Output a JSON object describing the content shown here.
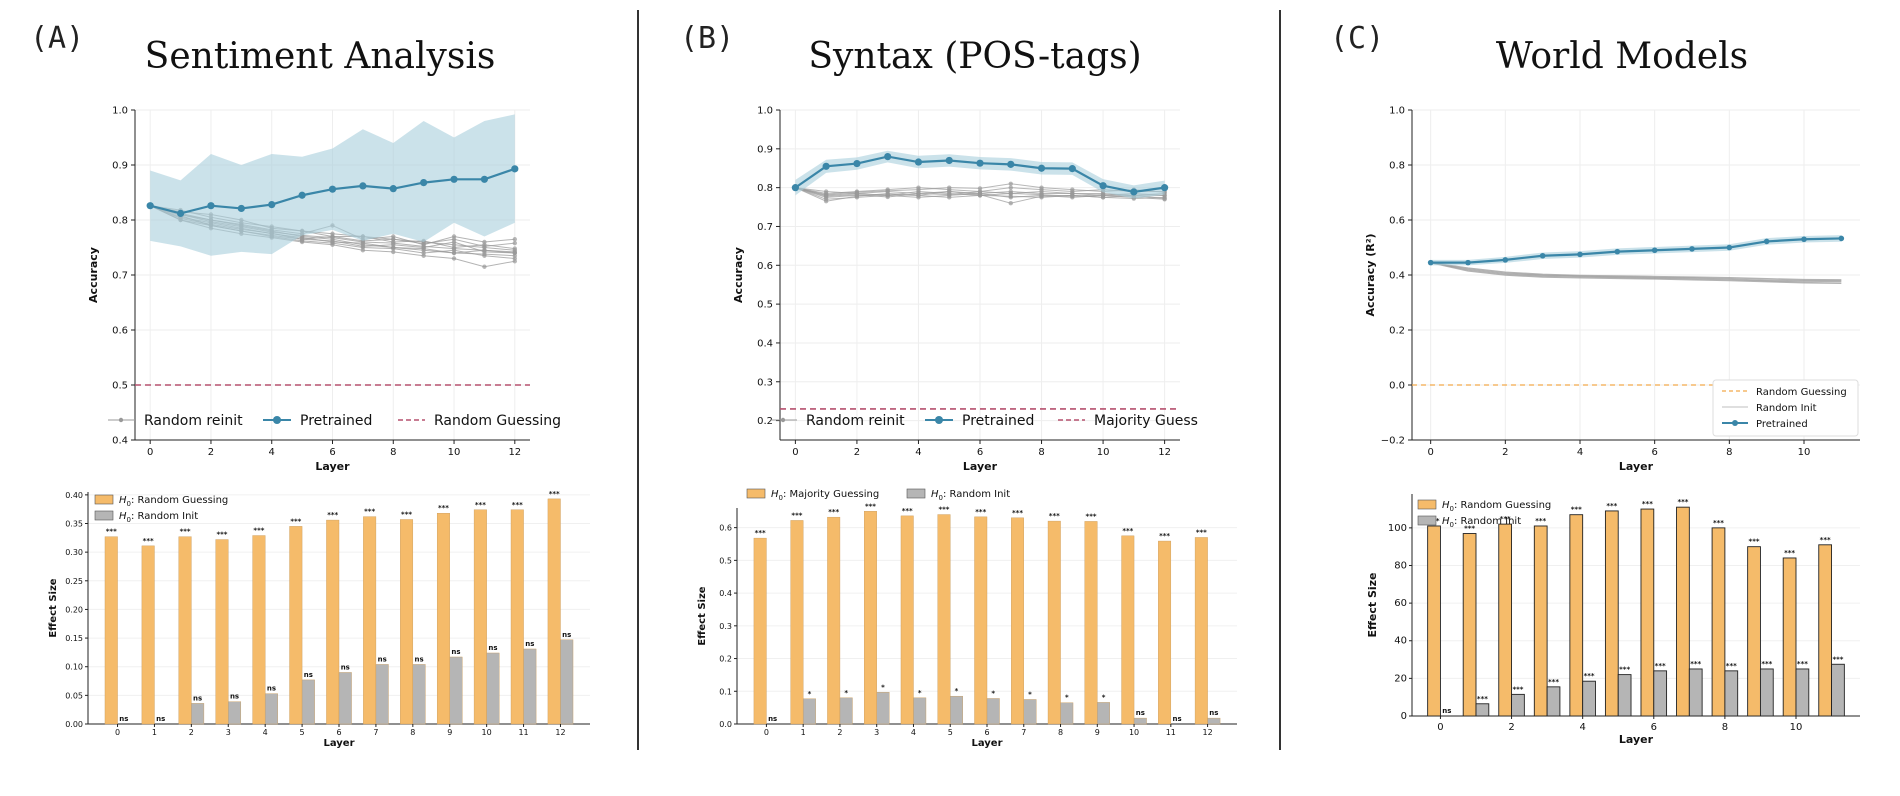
{
  "colors": {
    "pretrained": "#3a86a8",
    "band": "#a8cfdc",
    "random": "#999999",
    "guess_red": "#b5506e",
    "guess_orange": "#f2a94a",
    "bar_orange": "#f5bb6a",
    "bar_gray": "#b5b5b5"
  },
  "panels": [
    {
      "letter": "(A)",
      "title": "Sentiment Analysis"
    },
    {
      "letter": "(B)",
      "title": "Syntax (POS-tags)"
    },
    {
      "letter": "(C)",
      "title": "World Models"
    }
  ],
  "chart_data": [
    {
      "id": "A_line",
      "type": "line",
      "xlabel": "Layer",
      "ylabel": "Accuracy",
      "xlim": [
        -0.5,
        12.5
      ],
      "ylim": [
        0.4,
        1.0
      ],
      "xticks": [
        0,
        2,
        4,
        6,
        8,
        10,
        12
      ],
      "yticks": [
        0.4,
        0.5,
        0.6,
        0.7,
        0.8,
        0.9,
        1.0
      ],
      "ytick_labels": [
        "0.4",
        "0.5",
        "0.6",
        "0.7",
        "0.8",
        "0.9",
        "1.0"
      ],
      "x": [
        0,
        1,
        2,
        3,
        4,
        5,
        6,
        7,
        8,
        9,
        10,
        11,
        12
      ],
      "pretrained": [
        0.826,
        0.812,
        0.826,
        0.821,
        0.828,
        0.845,
        0.856,
        0.862,
        0.857,
        0.868,
        0.874,
        0.874,
        0.893
      ],
      "band_upper": [
        0.89,
        0.872,
        0.92,
        0.9,
        0.92,
        0.915,
        0.93,
        0.965,
        0.94,
        0.98,
        0.95,
        0.98,
        0.992
      ],
      "band_lower": [
        0.762,
        0.752,
        0.735,
        0.742,
        0.738,
        0.772,
        0.782,
        0.762,
        0.775,
        0.76,
        0.795,
        0.77,
        0.795
      ],
      "random_runs": [
        [
          0.826,
          0.81,
          0.8,
          0.79,
          0.78,
          0.77,
          0.765,
          0.755,
          0.75,
          0.745,
          0.74,
          0.745,
          0.74
        ],
        [
          0.826,
          0.8,
          0.79,
          0.78,
          0.77,
          0.762,
          0.758,
          0.75,
          0.748,
          0.74,
          0.745,
          0.735,
          0.73
        ],
        [
          0.826,
          0.815,
          0.81,
          0.8,
          0.785,
          0.78,
          0.775,
          0.77,
          0.765,
          0.76,
          0.755,
          0.75,
          0.745
        ],
        [
          0.826,
          0.805,
          0.795,
          0.785,
          0.775,
          0.768,
          0.76,
          0.758,
          0.75,
          0.748,
          0.74,
          0.738,
          0.735
        ],
        [
          0.826,
          0.812,
          0.8,
          0.792,
          0.782,
          0.775,
          0.79,
          0.765,
          0.77,
          0.755,
          0.77,
          0.76,
          0.765
        ],
        [
          0.826,
          0.8,
          0.785,
          0.775,
          0.768,
          0.76,
          0.755,
          0.745,
          0.742,
          0.735,
          0.73,
          0.715,
          0.725
        ],
        [
          0.826,
          0.818,
          0.805,
          0.795,
          0.788,
          0.78,
          0.77,
          0.77,
          0.76,
          0.762,
          0.75,
          0.755,
          0.748
        ],
        [
          0.826,
          0.808,
          0.79,
          0.78,
          0.772,
          0.765,
          0.762,
          0.752,
          0.755,
          0.75,
          0.76,
          0.742,
          0.74
        ],
        [
          0.826,
          0.81,
          0.797,
          0.788,
          0.778,
          0.772,
          0.768,
          0.76,
          0.758,
          0.752,
          0.748,
          0.745,
          0.742
        ],
        [
          0.826,
          0.803,
          0.792,
          0.783,
          0.776,
          0.765,
          0.77,
          0.762,
          0.765,
          0.757,
          0.765,
          0.752,
          0.758
        ]
      ],
      "guess_value": 0.5,
      "legend": [
        "Random reinit",
        "Pretrained",
        "Random Guessing"
      ]
    },
    {
      "id": "A_bar",
      "type": "bar",
      "xlabel": "Layer",
      "ylabel": "Effect Size",
      "ylim": [
        0,
        0.405
      ],
      "yticks": [
        0,
        0.05,
        0.1,
        0.15,
        0.2,
        0.25,
        0.3,
        0.35,
        0.4
      ],
      "ytick_labels": [
        "0.00",
        "0.05",
        "0.10",
        "0.15",
        "0.20",
        "0.25",
        "0.30",
        "0.35",
        "0.40"
      ],
      "categories": [
        "0",
        "1",
        "2",
        "3",
        "4",
        "5",
        "6",
        "7",
        "8",
        "9",
        "10",
        "11",
        "12"
      ],
      "series": [
        {
          "name": "H0: Random Guessing",
          "values": [
            0.327,
            0.311,
            0.327,
            0.322,
            0.329,
            0.345,
            0.356,
            0.362,
            0.357,
            0.368,
            0.374,
            0.374,
            0.393
          ],
          "sig": [
            "***",
            "***",
            "***",
            "***",
            "***",
            "***",
            "***",
            "***",
            "***",
            "***",
            "***",
            "***",
            "***"
          ]
        },
        {
          "name": "H0: Random Init",
          "values": [
            0.0,
            0.0,
            0.036,
            0.039,
            0.053,
            0.077,
            0.09,
            0.104,
            0.104,
            0.117,
            0.124,
            0.131,
            0.147
          ],
          "sig": [
            "ns",
            "ns",
            "ns",
            "ns",
            "ns",
            "ns",
            "ns",
            "ns",
            "ns",
            "ns",
            "ns",
            "ns",
            "ns"
          ]
        }
      ],
      "legend_labels": [
        ": Random Guessing",
        ": Random Init"
      ]
    },
    {
      "id": "B_line",
      "type": "line",
      "xlabel": "Layer",
      "ylabel": "Accuracy",
      "xlim": [
        -0.5,
        12.5
      ],
      "ylim": [
        0.15,
        1.0
      ],
      "xticks": [
        0,
        2,
        4,
        6,
        8,
        10,
        12
      ],
      "yticks": [
        0.2,
        0.3,
        0.4,
        0.5,
        0.6,
        0.7,
        0.8,
        0.9,
        1.0
      ],
      "ytick_labels": [
        "0.2",
        "0.3",
        "0.4",
        "0.5",
        "0.6",
        "0.7",
        "0.8",
        "0.9",
        "1.0"
      ],
      "x": [
        0,
        1,
        2,
        3,
        4,
        5,
        6,
        7,
        8,
        9,
        10,
        11,
        12
      ],
      "pretrained": [
        0.8,
        0.855,
        0.862,
        0.88,
        0.866,
        0.87,
        0.863,
        0.86,
        0.85,
        0.849,
        0.805,
        0.789,
        0.8
      ],
      "band_upper": [
        0.82,
        0.872,
        0.878,
        0.895,
        0.882,
        0.886,
        0.879,
        0.876,
        0.866,
        0.865,
        0.822,
        0.806,
        0.818
      ],
      "band_lower": [
        0.78,
        0.838,
        0.846,
        0.865,
        0.85,
        0.854,
        0.847,
        0.844,
        0.834,
        0.833,
        0.788,
        0.772,
        0.782
      ],
      "random_runs": [
        [
          0.8,
          0.78,
          0.785,
          0.79,
          0.785,
          0.79,
          0.785,
          0.79,
          0.785,
          0.785,
          0.78,
          0.785,
          0.78
        ],
        [
          0.8,
          0.775,
          0.78,
          0.782,
          0.78,
          0.775,
          0.78,
          0.778,
          0.775,
          0.78,
          0.775,
          0.772,
          0.775
        ],
        [
          0.8,
          0.785,
          0.79,
          0.795,
          0.8,
          0.795,
          0.79,
          0.8,
          0.795,
          0.79,
          0.795,
          0.79,
          0.79
        ],
        [
          0.8,
          0.77,
          0.775,
          0.78,
          0.775,
          0.78,
          0.785,
          0.775,
          0.78,
          0.775,
          0.78,
          0.775,
          0.77
        ],
        [
          0.8,
          0.79,
          0.785,
          0.78,
          0.79,
          0.785,
          0.78,
          0.785,
          0.79,
          0.785,
          0.785,
          0.78,
          0.785
        ],
        [
          0.8,
          0.765,
          0.778,
          0.785,
          0.78,
          0.79,
          0.782,
          0.76,
          0.778,
          0.78,
          0.775,
          0.78,
          0.772
        ],
        [
          0.8,
          0.782,
          0.788,
          0.792,
          0.795,
          0.8,
          0.798,
          0.81,
          0.8,
          0.795,
          0.79,
          0.795,
          0.788
        ],
        [
          0.8,
          0.778,
          0.782,
          0.776,
          0.785,
          0.782,
          0.79,
          0.785,
          0.782,
          0.778,
          0.782,
          0.778,
          0.78
        ]
      ],
      "guess_value": 0.23,
      "legend": [
        "Random reinit",
        "Pretrained",
        "Majority Guess"
      ]
    },
    {
      "id": "B_bar",
      "type": "bar",
      "xlabel": "Layer",
      "ylabel": "Effect Size",
      "ylim": [
        0,
        0.66
      ],
      "yticks": [
        0,
        0.1,
        0.2,
        0.3,
        0.4,
        0.5,
        0.6
      ],
      "ytick_labels": [
        "0.0",
        "0.1",
        "0.2",
        "0.3",
        "0.4",
        "0.5",
        "0.6"
      ],
      "categories": [
        "0",
        "1",
        "2",
        "3",
        "4",
        "5",
        "6",
        "7",
        "8",
        "9",
        "10",
        "11",
        "12"
      ],
      "series": [
        {
          "name": "H0: Majority Guessing",
          "values": [
            0.568,
            0.622,
            0.632,
            0.65,
            0.636,
            0.64,
            0.633,
            0.63,
            0.62,
            0.619,
            0.575,
            0.559,
            0.57
          ],
          "sig": [
            "***",
            "***",
            "***",
            "***",
            "***",
            "***",
            "***",
            "***",
            "***",
            "***",
            "***",
            "***",
            "***"
          ]
        },
        {
          "name": "H0: Random Init",
          "values": [
            0.0,
            0.077,
            0.08,
            0.097,
            0.08,
            0.085,
            0.078,
            0.075,
            0.065,
            0.066,
            0.018,
            0.0,
            0.018
          ],
          "sig": [
            "ns",
            "*",
            "*",
            "*",
            "*",
            "*",
            "*",
            "*",
            "*",
            "*",
            "ns",
            "ns",
            "ns"
          ]
        }
      ],
      "legend_labels": [
        ": Majority Guessing",
        ": Random Init"
      ]
    },
    {
      "id": "C_line",
      "type": "line",
      "xlabel": "Layer",
      "ylabel": "Accuracy (R²)",
      "xlim": [
        -0.5,
        11.5
      ],
      "ylim": [
        -0.2,
        1.0
      ],
      "xticks": [
        0,
        2,
        4,
        6,
        8,
        10
      ],
      "yticks": [
        -0.2,
        0.0,
        0.2,
        0.4,
        0.6,
        0.8,
        1.0
      ],
      "ytick_labels": [
        "−0.2",
        "0.0",
        "0.2",
        "0.4",
        "0.6",
        "0.8",
        "1.0"
      ],
      "x": [
        0,
        1,
        2,
        3,
        4,
        5,
        6,
        7,
        8,
        9,
        10,
        11
      ],
      "pretrained": [
        0.445,
        0.445,
        0.455,
        0.47,
        0.475,
        0.485,
        0.49,
        0.495,
        0.5,
        0.522,
        0.53,
        0.533
      ],
      "band_upper": [
        0.455,
        0.455,
        0.466,
        0.482,
        0.487,
        0.497,
        0.502,
        0.507,
        0.512,
        0.534,
        0.542,
        0.545
      ],
      "band_lower": [
        0.435,
        0.435,
        0.444,
        0.458,
        0.463,
        0.473,
        0.478,
        0.483,
        0.488,
        0.51,
        0.518,
        0.521
      ],
      "random_runs": [
        [
          0.445,
          0.42,
          0.405,
          0.398,
          0.395,
          0.392,
          0.39,
          0.388,
          0.385,
          0.38,
          0.378,
          0.377
        ],
        [
          0.445,
          0.415,
          0.4,
          0.393,
          0.39,
          0.388,
          0.386,
          0.383,
          0.38,
          0.376,
          0.372,
          0.37
        ],
        [
          0.445,
          0.425,
          0.41,
          0.402,
          0.398,
          0.396,
          0.394,
          0.392,
          0.39,
          0.386,
          0.383,
          0.382
        ]
      ],
      "guess_value": 0.0,
      "legend": [
        "Random Guessing",
        "Random Init",
        "Pretrained"
      ]
    },
    {
      "id": "C_bar",
      "type": "bar",
      "xlabel": "Layer",
      "ylabel": "Effect Size",
      "ylim": [
        0,
        118
      ],
      "xticks": [
        0,
        2,
        4,
        6,
        8,
        10
      ],
      "yticks": [
        0,
        20,
        40,
        60,
        80,
        100
      ],
      "ytick_labels": [
        "0",
        "20",
        "40",
        "60",
        "80",
        "100"
      ],
      "categories": [
        "0",
        "1",
        "2",
        "3",
        "4",
        "5",
        "6",
        "7",
        "8",
        "9",
        "10",
        "11"
      ],
      "series": [
        {
          "name": "H0: Random Guessing",
          "values": [
            101,
            97,
            102,
            101,
            107,
            109,
            110,
            111,
            100,
            90,
            84,
            91
          ],
          "sig": [
            "***",
            "***",
            "***",
            "***",
            "***",
            "***",
            "***",
            "***",
            "***",
            "***",
            "***",
            "***"
          ]
        },
        {
          "name": "H0: Random Init",
          "values": [
            0,
            6.5,
            11.5,
            15.5,
            18.5,
            22,
            24,
            25,
            24,
            25,
            25,
            27.5
          ],
          "sig": [
            "ns",
            "***",
            "***",
            "***",
            "***",
            "***",
            "***",
            "***",
            "***",
            "***",
            "***",
            "***"
          ]
        }
      ],
      "legend_labels": [
        ": Random Guessing",
        ": Random Init"
      ]
    }
  ]
}
